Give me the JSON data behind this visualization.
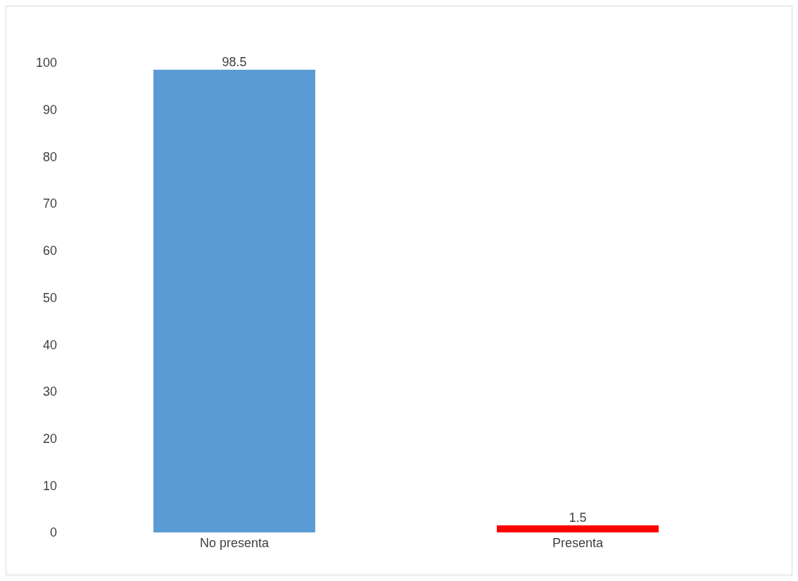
{
  "chart_data": {
    "type": "bar",
    "categories": [
      "No presenta",
      "Presenta"
    ],
    "values": [
      98.5,
      1.5
    ],
    "colors": [
      "#5b9bd5",
      "#ff0000"
    ],
    "ylim": [
      0,
      100
    ],
    "yticks": [
      0,
      10,
      20,
      30,
      40,
      50,
      60,
      70,
      80,
      90,
      100
    ],
    "grid": false,
    "data_labels": true
  }
}
